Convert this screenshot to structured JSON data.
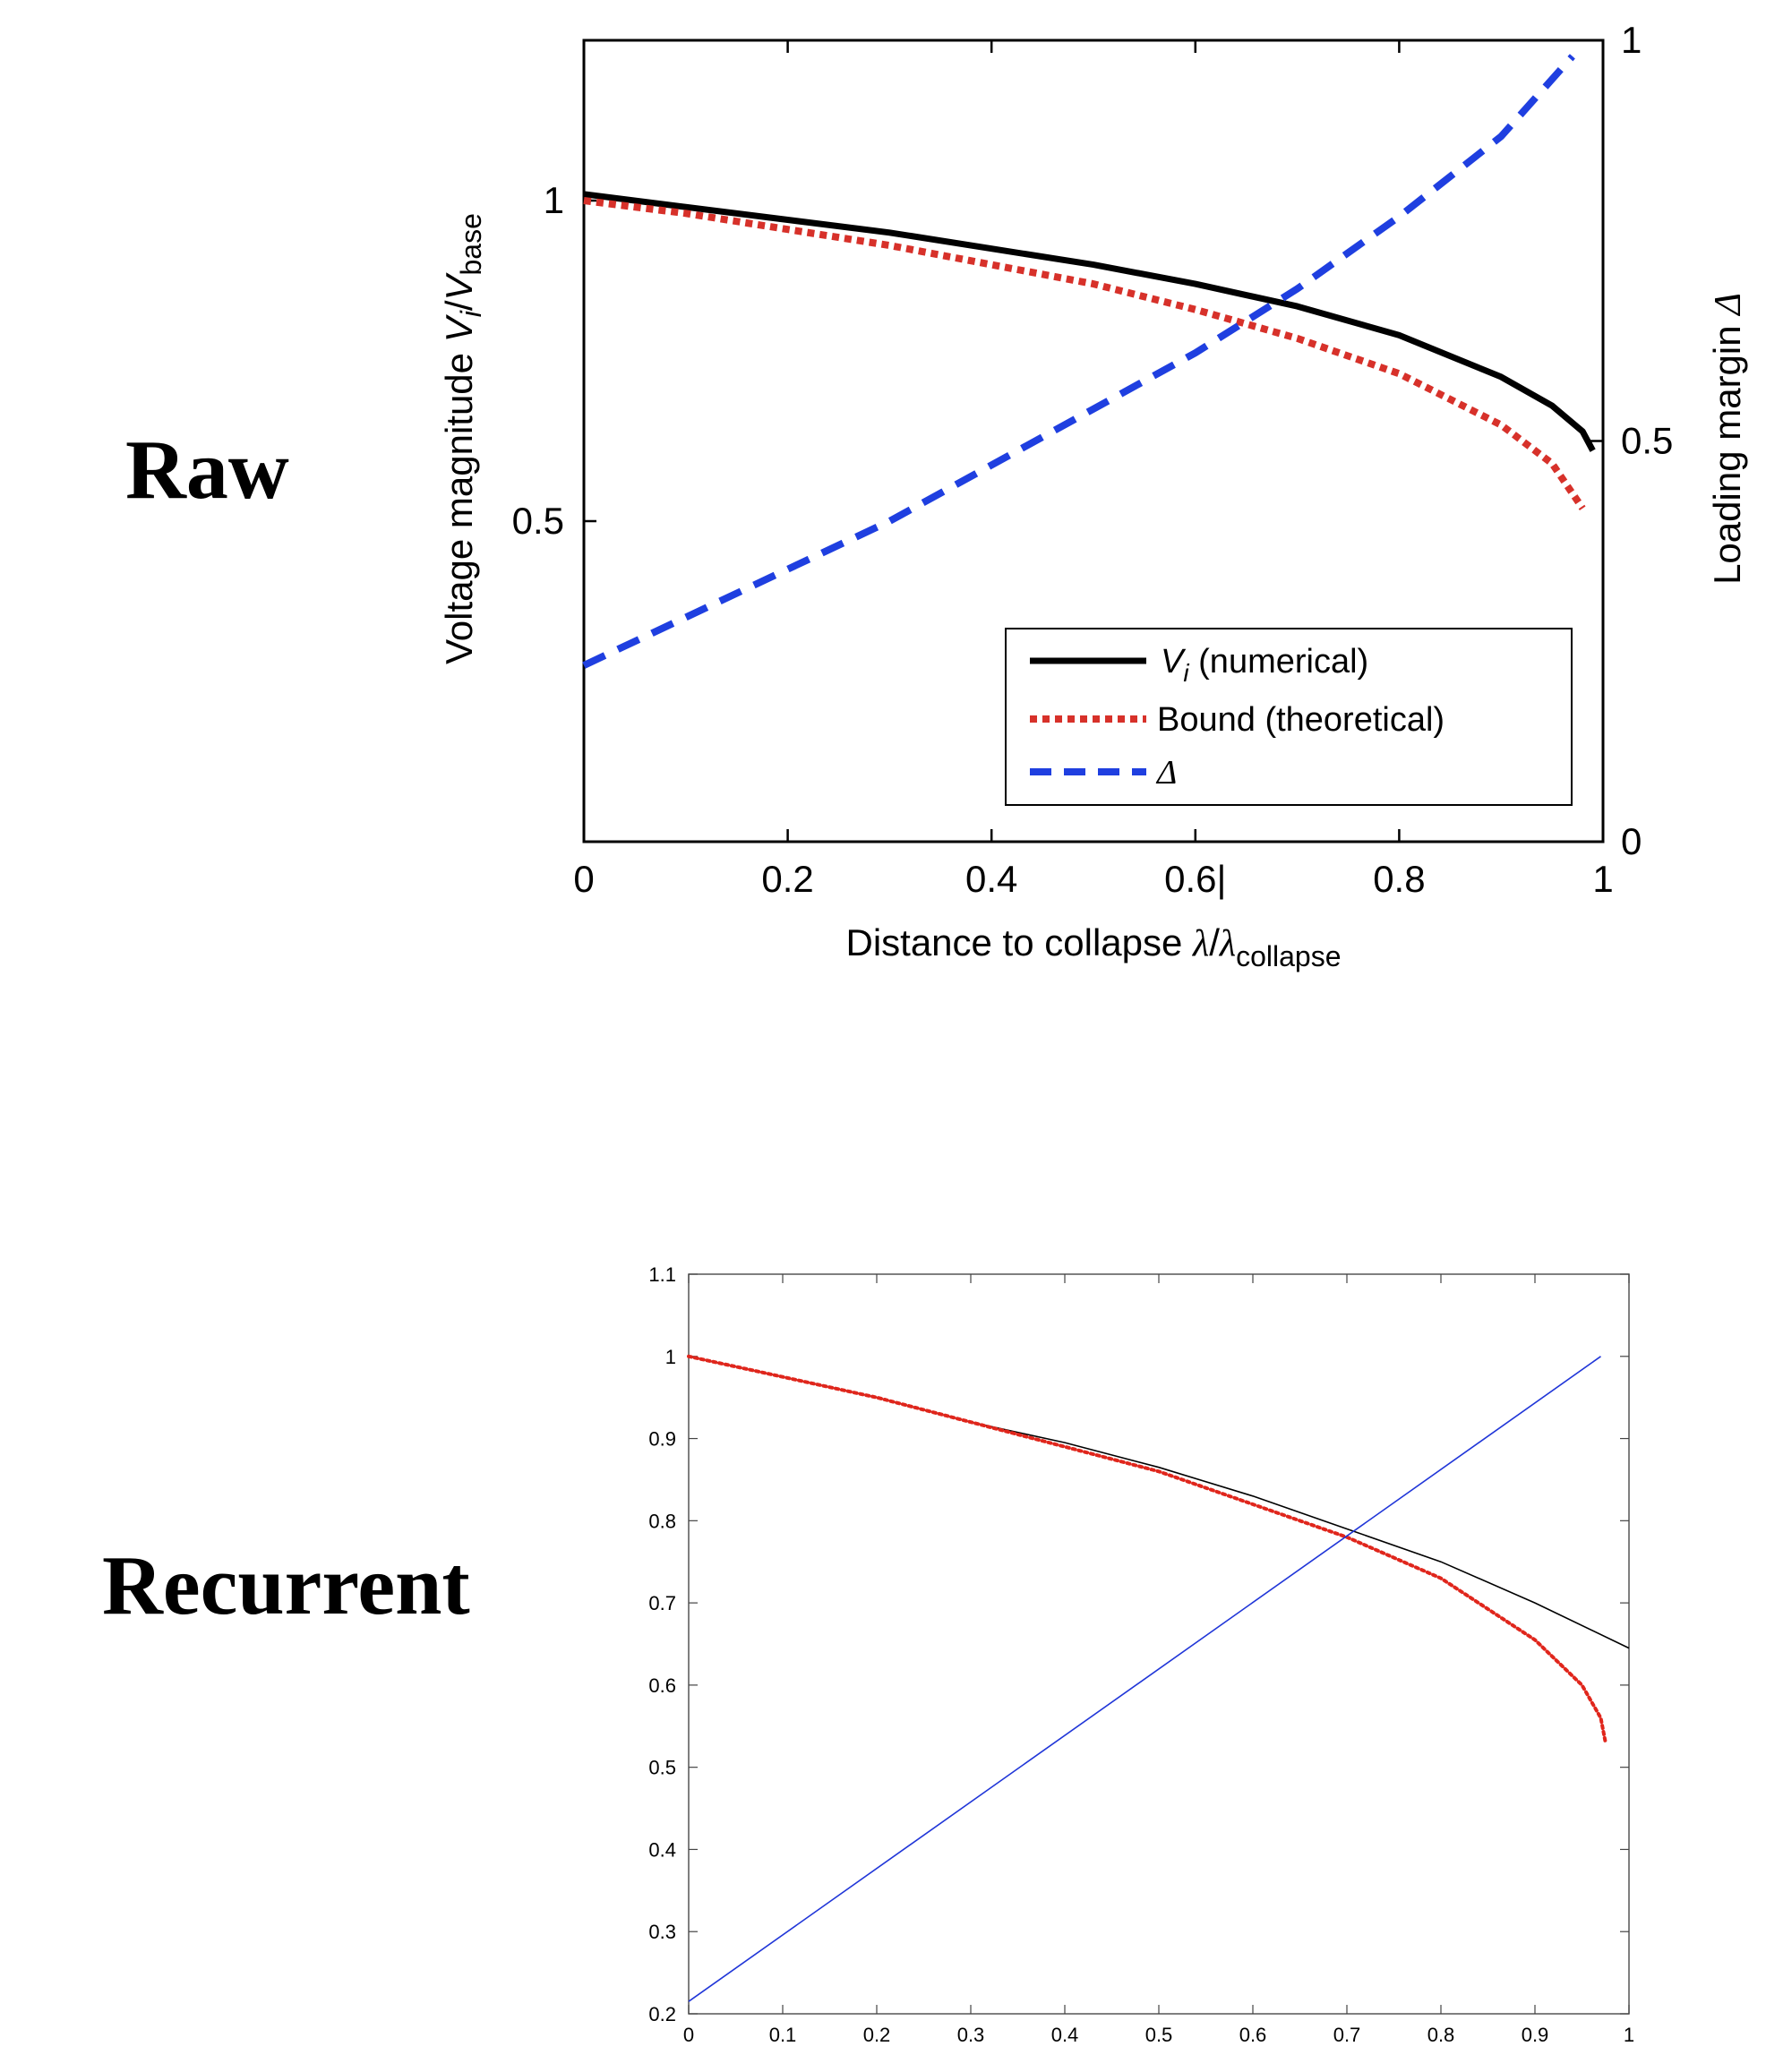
{
  "labels": {
    "raw": "Raw",
    "recurrent": "Recurrent"
  },
  "chart_data": [
    {
      "type": "line",
      "name_label": "Raw",
      "xlabel": "Distance to collapse λ/λcollapse",
      "xlabel_parts": {
        "main": "Distance to collapse ",
        "lambda": "λ",
        "slash": "/",
        "lambda2": "λ",
        "sub": "collapse"
      },
      "ylabel_left": "Voltage magnitude Vi/Vbase",
      "ylabel_left_parts": {
        "main": "Voltage magnitude ",
        "v": "V",
        "i": "i",
        "slash": "/",
        "v2": "V",
        "sub": "base"
      },
      "ylabel_right": "Loading margin Δ",
      "ylabel_right_parts": {
        "main": "Loading margin ",
        "delta": "Δ"
      },
      "xlim": [
        0,
        1
      ],
      "ylim_left": [
        0.0,
        1.25
      ],
      "ylim_right": [
        0,
        1
      ],
      "x_ticks": [
        "0",
        "0.2",
        "0.4",
        "0.6|",
        "0.8",
        "1"
      ],
      "x_tick_values": [
        0,
        0.2,
        0.4,
        0.6,
        0.8,
        1
      ],
      "y_left_ticks": [
        "0.5",
        "1"
      ],
      "y_left_tick_values": [
        0.5,
        1
      ],
      "y_right_ticks": [
        "0",
        "0.5",
        "1"
      ],
      "y_right_tick_values": [
        0,
        0.5,
        1
      ],
      "legend": {
        "placement": "bottom-right",
        "entries": [
          {
            "label_main": "V",
            "label_sub": "i",
            "label_rest": " (numerical)",
            "style": "solid",
            "color": "#000000"
          },
          {
            "label_main": "Bound (theoretical)",
            "style": "dotted",
            "color": "#d7312a"
          },
          {
            "label_main": "Δ",
            "style": "dashed",
            "color": "#1f3fe0"
          }
        ]
      },
      "series": [
        {
          "name": "Vi (numerical)",
          "axis": "left",
          "color": "#000000",
          "style": "solid",
          "x": [
            0,
            0.1,
            0.2,
            0.3,
            0.4,
            0.5,
            0.6,
            0.7,
            0.8,
            0.9,
            0.95,
            0.98,
            0.99
          ],
          "y": [
            1.01,
            0.99,
            0.97,
            0.95,
            0.925,
            0.9,
            0.87,
            0.835,
            0.79,
            0.725,
            0.68,
            0.64,
            0.61
          ]
        },
        {
          "name": "Bound (theoretical)",
          "axis": "left",
          "color": "#d7312a",
          "style": "dotted",
          "x": [
            0,
            0.1,
            0.2,
            0.3,
            0.4,
            0.5,
            0.6,
            0.7,
            0.8,
            0.9,
            0.95,
            0.98
          ],
          "y": [
            1.0,
            0.98,
            0.955,
            0.93,
            0.9,
            0.87,
            0.83,
            0.785,
            0.73,
            0.65,
            0.59,
            0.52
          ]
        },
        {
          "name": "Δ",
          "axis": "right",
          "color": "#1f3fe0",
          "style": "dashed",
          "x": [
            0,
            0.1,
            0.2,
            0.3,
            0.4,
            0.5,
            0.6,
            0.7,
            0.8,
            0.9,
            0.97
          ],
          "y": [
            0.22,
            0.28,
            0.34,
            0.4,
            0.47,
            0.54,
            0.61,
            0.69,
            0.78,
            0.88,
            0.98
          ]
        }
      ]
    },
    {
      "type": "line",
      "name_label": "Recurrent",
      "xlim": [
        0,
        1
      ],
      "ylim": [
        0.2,
        1.1
      ],
      "x_ticks": [
        "0",
        "0.1",
        "0.2",
        "0.3",
        "0.4",
        "0.5",
        "0.6",
        "0.7",
        "0.8",
        "0.9",
        "1"
      ],
      "x_tick_values": [
        0,
        0.1,
        0.2,
        0.3,
        0.4,
        0.5,
        0.6,
        0.7,
        0.8,
        0.9,
        1
      ],
      "y_ticks": [
        "0.2",
        "0.3",
        "0.4",
        "0.5",
        "0.6",
        "0.7",
        "0.8",
        "0.9",
        "1",
        "1.1"
      ],
      "y_tick_values": [
        0.2,
        0.3,
        0.4,
        0.5,
        0.6,
        0.7,
        0.8,
        0.9,
        1,
        1.1
      ],
      "series": [
        {
          "color": "#000000",
          "style": "solid",
          "x": [
            0,
            0.1,
            0.2,
            0.3,
            0.4,
            0.5,
            0.6,
            0.7,
            0.8,
            0.9,
            1.0
          ],
          "y": [
            1.0,
            0.975,
            0.95,
            0.92,
            0.895,
            0.865,
            0.83,
            0.79,
            0.75,
            0.7,
            0.645
          ]
        },
        {
          "color": "#e0261c",
          "style": "dotted",
          "x": [
            0,
            0.1,
            0.2,
            0.3,
            0.4,
            0.5,
            0.6,
            0.7,
            0.8,
            0.9,
            0.95,
            0.97,
            0.975
          ],
          "y": [
            1.0,
            0.975,
            0.95,
            0.92,
            0.89,
            0.86,
            0.82,
            0.78,
            0.73,
            0.655,
            0.6,
            0.56,
            0.53
          ]
        },
        {
          "color": "#2036d8",
          "style": "solid",
          "x": [
            0,
            0.97
          ],
          "y": [
            0.215,
            1.0
          ]
        }
      ]
    }
  ]
}
